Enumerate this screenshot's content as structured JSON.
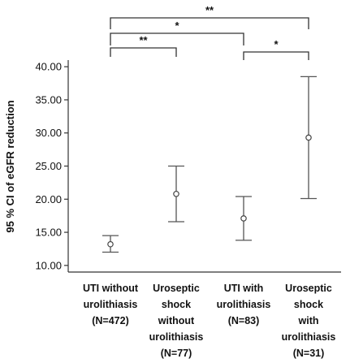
{
  "chart_data": {
    "type": "errorbar",
    "title": "",
    "ylabel": "95 % CI of eGFR reduction",
    "xlabel": "",
    "ylim": [
      9.0,
      41.0
    ],
    "yticks": [
      10,
      15,
      20,
      25,
      30,
      35,
      40
    ],
    "ytick_labels": [
      "10.00",
      "15.00",
      "20.00",
      "25.00",
      "30.00",
      "35.00",
      "40.00"
    ],
    "grid": false,
    "categories": [
      [
        "UTI without",
        "urolithiasis",
        "(N=472)"
      ],
      [
        "Uroseptic",
        "shock",
        "without",
        "urolithiasis",
        "(N=77)"
      ],
      [
        "UTI with",
        "urolithiasis",
        "(N=83)"
      ],
      [
        "Uroseptic",
        "shock",
        "with",
        "urolithiasis",
        "(N=31)"
      ]
    ],
    "mean": [
      13.2,
      20.8,
      17.1,
      29.3
    ],
    "lower": [
      12.0,
      16.6,
      13.8,
      20.1
    ],
    "upper": [
      14.5,
      25.0,
      20.4,
      38.5
    ],
    "significance": [
      {
        "from": 0,
        "to": 3,
        "label": "**"
      },
      {
        "from": 0,
        "to": 2,
        "label": "*"
      },
      {
        "from": 0,
        "to": 1,
        "label": "**"
      },
      {
        "from": 2,
        "to": 3,
        "label": "*"
      }
    ]
  }
}
